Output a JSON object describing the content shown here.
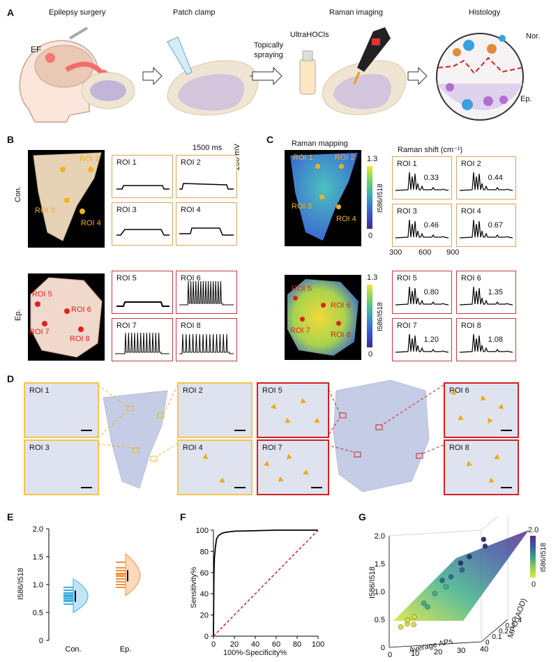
{
  "panel_A": {
    "letter": "A",
    "steps": [
      "Epilepsy surgery",
      "Patch clamp",
      "Raman imaging",
      "Histology"
    ],
    "ef_label": "EF",
    "spray_label": "Topically spraying",
    "probe_label": "UltraHOCls",
    "nor_label": "Nor.",
    "ep_label": "Ep."
  },
  "panel_B": {
    "letter": "B",
    "scale_time": "1500 ms",
    "scale_voltage": "200 mV",
    "row_con": "Con.",
    "row_ep": "Ep.",
    "con_rois": [
      "ROI 1",
      "ROI 2",
      "ROI 3",
      "ROI 4"
    ],
    "ep_rois": [
      "ROI 5",
      "ROI 6",
      "ROI 7",
      "ROI 8"
    ]
  },
  "panel_C": {
    "letter": "C",
    "title": "Raman mapping",
    "shift_title": "Raman shift (cm⁻¹)",
    "colorbar_max": "1.3",
    "colorbar_min": "0",
    "colorbar_label": "I586/I518",
    "axis_ticks": [
      "300",
      "600",
      "900"
    ],
    "con": [
      {
        "roi": "ROI 1",
        "value": "0.33"
      },
      {
        "roi": "ROI 2",
        "value": "0.44"
      },
      {
        "roi": "ROI 3",
        "value": "0.46"
      },
      {
        "roi": "ROI 4",
        "value": "0.67"
      }
    ],
    "ep": [
      {
        "roi": "ROI 5",
        "value": "0.80"
      },
      {
        "roi": "ROI 6",
        "value": "1.35"
      },
      {
        "roi": "ROI 7",
        "value": "1.20"
      },
      {
        "roi": "ROI 8",
        "value": "1.08"
      }
    ]
  },
  "panel_D": {
    "letter": "D",
    "rois": [
      "ROI 1",
      "ROI 2",
      "ROI 3",
      "ROI 4",
      "ROI 5",
      "ROI 6",
      "ROI 7",
      "ROI 8"
    ]
  },
  "panel_E": {
    "letter": "E",
    "ylabel": "I586/I518",
    "yticks": [
      "0",
      "0.5",
      "1.0",
      "1.5",
      "2.0"
    ],
    "groups": [
      "Con.",
      "Ep."
    ]
  },
  "panel_F": {
    "letter": "F",
    "ylabel": "Sensitivity%",
    "xlabel": "100%-Specificity%",
    "ticks": [
      "0",
      "20",
      "40",
      "60",
      "80",
      "100"
    ]
  },
  "panel_G": {
    "letter": "G",
    "zlabel": "I586/I518",
    "xlabel": "Average APs",
    "ylabel": "MPO (AOD)",
    "zticks": [
      "0",
      "0.5",
      "1.0",
      "1.5",
      "2.0"
    ],
    "xticks": [
      "0",
      "10",
      "20",
      "30",
      "40"
    ],
    "yticks": [
      "0",
      "0.1",
      "0.2",
      "0.3",
      "0.4"
    ],
    "colorbar_max": "2.0",
    "colorbar_min": "0",
    "colorbar_label": "I586/I518"
  },
  "chart_data": [
    {
      "type": "scatter",
      "title": "",
      "xlabel": "",
      "ylabel": "I586/I518",
      "ylim": [
        0,
        2.0
      ],
      "categories": [
        "Con.",
        "Ep."
      ],
      "series": [
        {
          "values": [
            0.78,
            0.82,
            0.75,
            0.85,
            0.7,
            0.9,
            0.8,
            0.65,
            0.95,
            0.72
          ]
        },
        {
          "values": [
            1.15,
            1.2,
            1.05,
            1.3,
            1.1,
            1.25,
            0.95,
            1.4,
            1.0,
            1.18
          ]
        }
      ]
    },
    {
      "type": "line",
      "title": "",
      "xlabel": "100%-Specificity%",
      "ylabel": "Sensitivity%",
      "xlim": [
        0,
        100
      ],
      "ylim": [
        0,
        100
      ],
      "series": [
        {
          "x": [
            0,
            0.5,
            1,
            2,
            3,
            5,
            8,
            12,
            20,
            40,
            60,
            80,
            100
          ],
          "y": [
            0,
            60,
            75,
            85,
            92,
            95,
            97,
            98,
            99,
            99.5,
            100,
            100,
            100
          ]
        },
        {
          "x": [
            0,
            100
          ],
          "y": [
            0,
            100
          ]
        }
      ]
    },
    {
      "type": "scatter",
      "title": "",
      "xlabel": "Average APs",
      "ylabel": "MPO (AOD)",
      "zlabel": "I586/I518",
      "xlim": [
        0,
        40
      ],
      "ylim": [
        0,
        0.4
      ],
      "zlim": [
        0,
        2.0
      ],
      "series": [
        {
          "x": [
            2,
            3,
            4,
            5,
            6,
            10,
            12,
            15,
            18,
            20,
            22,
            25,
            28,
            30,
            35,
            38
          ],
          "z": [
            0.35,
            0.4,
            0.38,
            0.45,
            0.5,
            0.65,
            0.7,
            0.85,
            0.95,
            1.05,
            1.1,
            1.2,
            1.3,
            1.4,
            1.55,
            1.65
          ]
        }
      ]
    }
  ]
}
